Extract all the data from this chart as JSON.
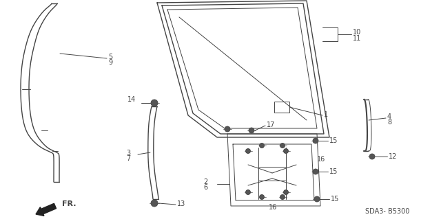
{
  "bg_color": "#ffffff",
  "line_color": "#444444",
  "figsize": [
    6.4,
    3.19
  ],
  "dpi": 100,
  "part_code": "SDA3- B5300"
}
